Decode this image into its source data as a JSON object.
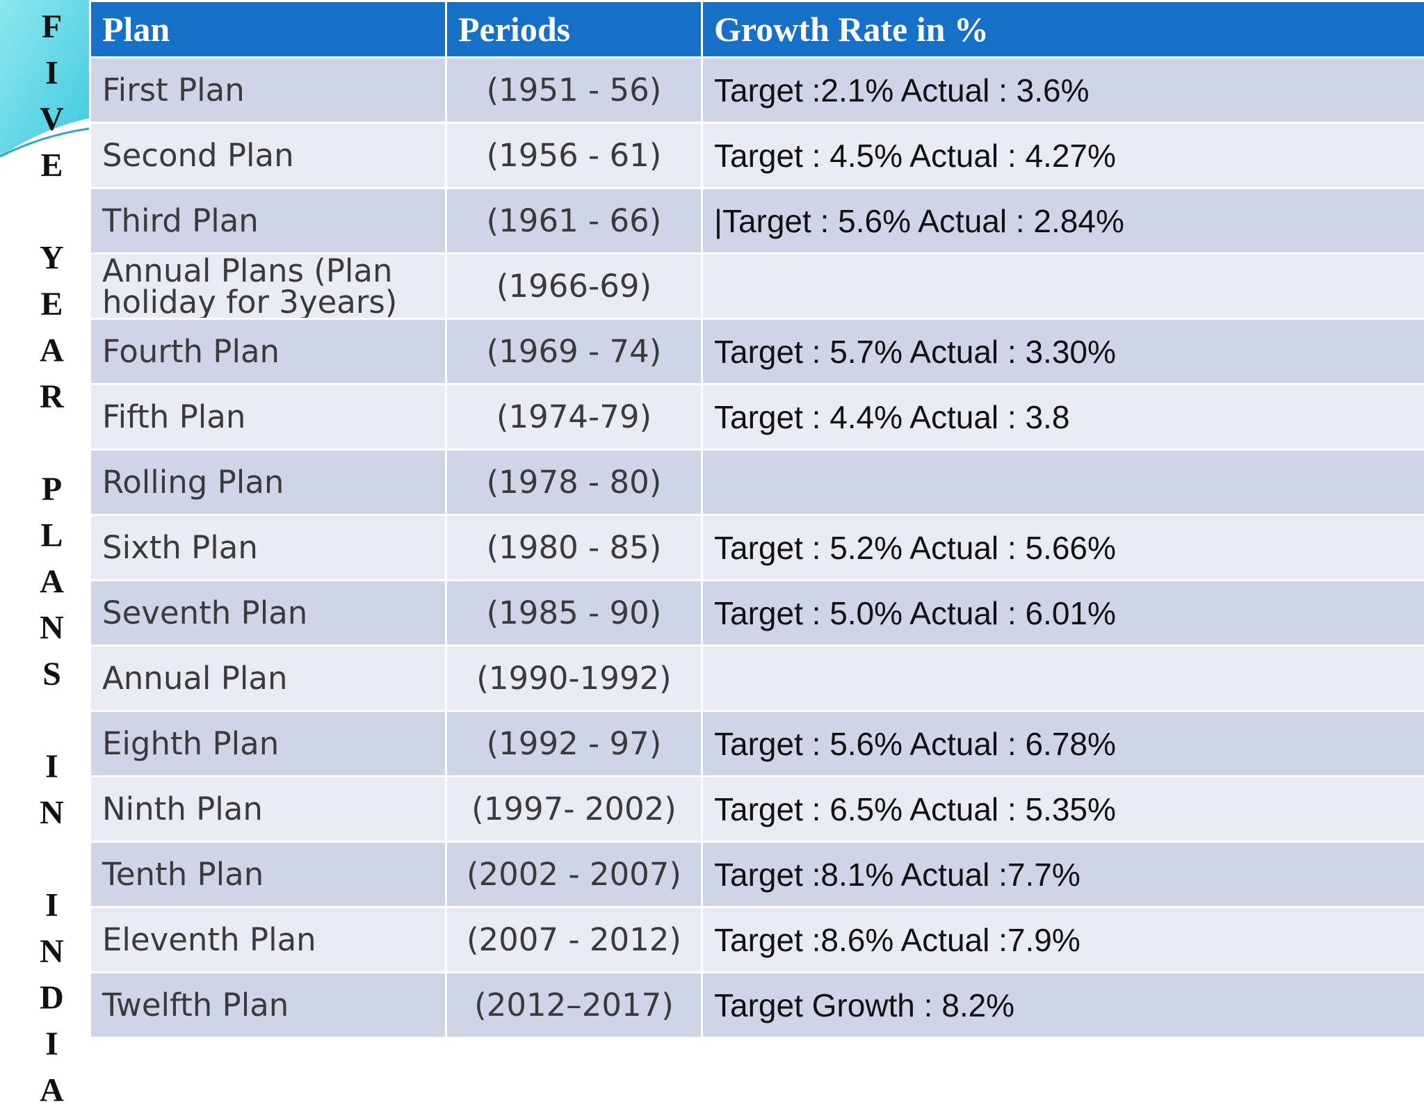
{
  "side_title": "FIVE YEAR PLANS IN INDIA",
  "table": {
    "header": [
      "Plan",
      "Periods",
      "Growth Rate in %"
    ],
    "rows": [
      [
        "First Plan",
        "(1951 - 56)",
        "Target :2.1%   Actual : 3.6%"
      ],
      [
        "Second Plan",
        "(1956 - 61)",
        "Target : 4.5% Actual : 4.27%"
      ],
      [
        "Third Plan",
        "(1961 - 66)",
        "|Target : 5.6% Actual : 2.84%"
      ],
      [
        "Annual Plans (Plan holiday for 3years)",
        "(1966-69)"
      ],
      [
        "Fourth Plan",
        "(1969 - 74)",
        "Target : 5.7% Actual : 3.30%"
      ],
      [
        "Fifth Plan",
        "(1974-79)",
        "Target : 4.4% Actual : 3.8"
      ],
      [
        "Rolling Plan",
        "(1978 - 80)"
      ],
      [
        "Sixth Plan",
        "(1980 - 85)",
        "Target : 5.2% Actual : 5.66%"
      ],
      [
        "Seventh Plan",
        "(1985 - 90)",
        "Target : 5.0% Actual : 6.01%"
      ],
      [
        "Annual Plan",
        "(1990-1992)"
      ],
      [
        "Eighth Plan",
        "(1992 - 97)",
        "Target : 5.6%  Actual : 6.78%"
      ],
      [
        "Ninth Plan",
        "(1997- 2002)",
        "Target : 6.5% Actual : 5.35%"
      ],
      [
        "Tenth Plan",
        "(2002 - 2007)",
        "Target :8.1%  Actual :7.7%"
      ],
      [
        "Eleventh Plan",
        "(2007 - 2012)",
        "Target :8.6%  Actual :7.9%"
      ],
      [
        "Twelfth Plan",
        "(2012–2017)",
        "Target Growth : 8.2%"
      ]
    ]
  }
}
